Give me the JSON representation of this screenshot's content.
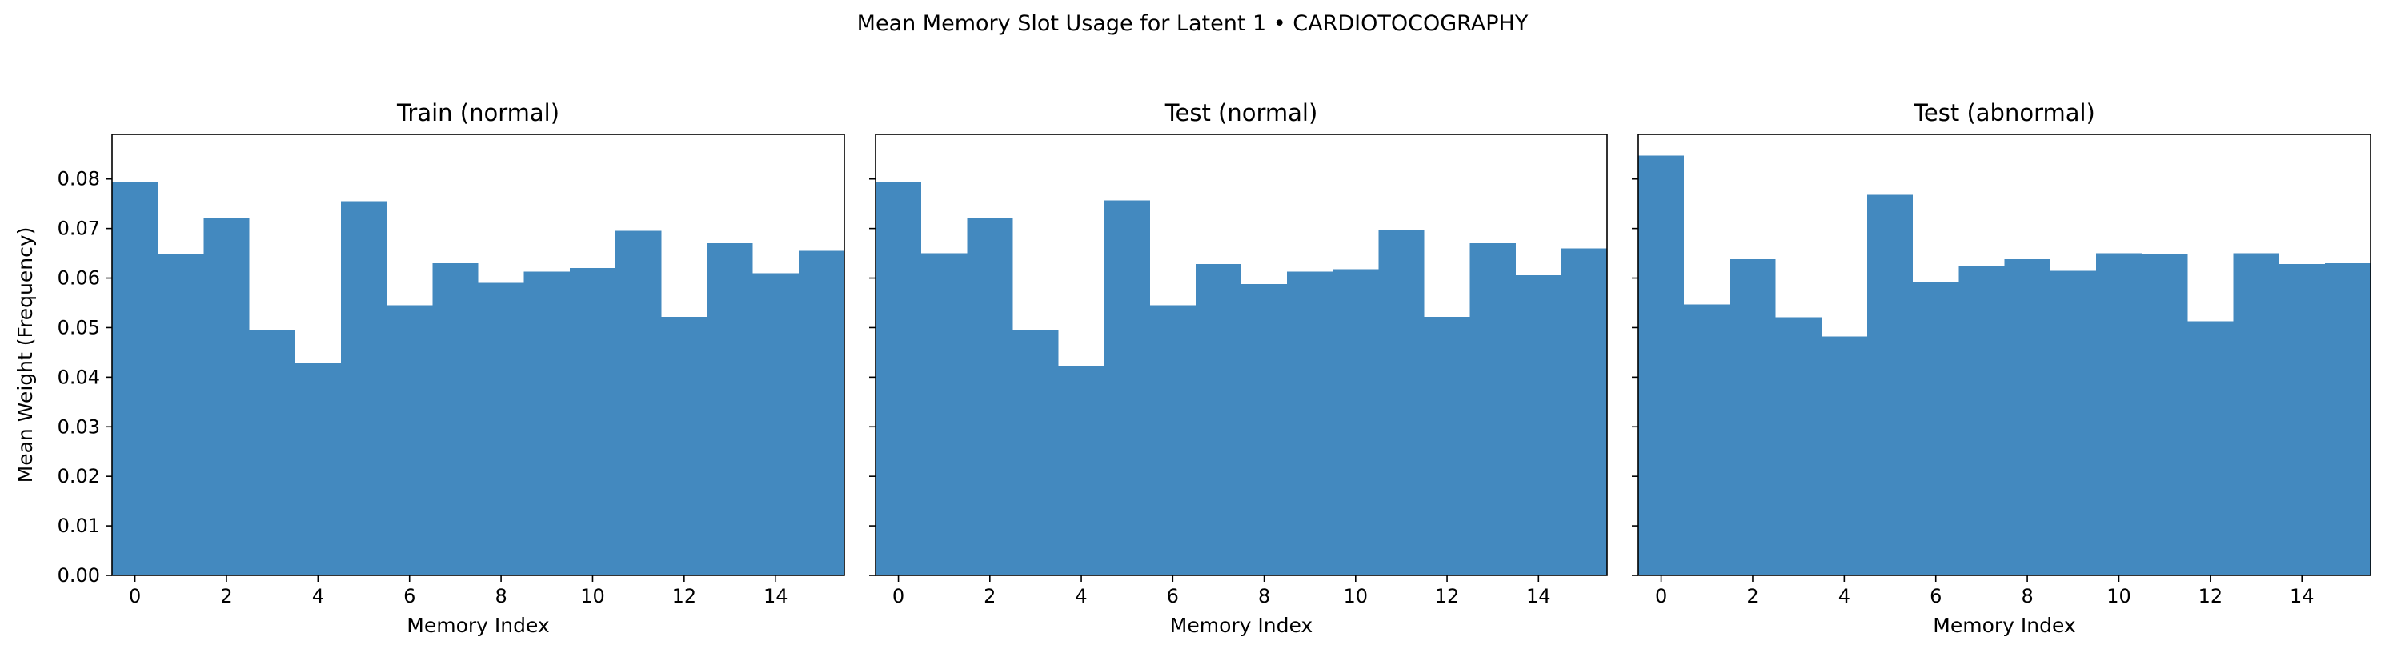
{
  "figure": {
    "suptitle": "Mean Memory Slot Usage for Latent 1 • CARDIOTOCOGRAPHY",
    "bar_color": "#4389BF"
  },
  "chart_data": [
    {
      "type": "bar",
      "title": "Train (normal)",
      "xlabel": "Memory Index",
      "ylabel": "Mean Weight (Frequency)",
      "x": [
        0,
        1,
        2,
        3,
        4,
        5,
        6,
        7,
        8,
        9,
        10,
        11,
        12,
        13,
        14,
        15
      ],
      "values": [
        0.0795,
        0.0648,
        0.072,
        0.0495,
        0.0428,
        0.0755,
        0.0545,
        0.063,
        0.059,
        0.0613,
        0.062,
        0.0695,
        0.0522,
        0.067,
        0.061,
        0.0655
      ],
      "xlim": [
        -0.5,
        15.5
      ],
      "ylim": [
        0,
        0.089
      ],
      "xticks": [
        0,
        2,
        4,
        6,
        8,
        10,
        12,
        14
      ],
      "yticks": [
        0.0,
        0.01,
        0.02,
        0.03,
        0.04,
        0.05,
        0.06,
        0.07,
        0.08
      ],
      "ytick_labels_shown": true,
      "grid": false,
      "legend": "none"
    },
    {
      "type": "bar",
      "title": "Test (normal)",
      "xlabel": "Memory Index",
      "ylabel": "",
      "x": [
        0,
        1,
        2,
        3,
        4,
        5,
        6,
        7,
        8,
        9,
        10,
        11,
        12,
        13,
        14,
        15
      ],
      "values": [
        0.0795,
        0.065,
        0.0722,
        0.0495,
        0.0423,
        0.0757,
        0.0545,
        0.0628,
        0.0588,
        0.0613,
        0.0618,
        0.0697,
        0.0522,
        0.067,
        0.0606,
        0.066
      ],
      "xlim": [
        -0.5,
        15.5
      ],
      "ylim": [
        0,
        0.089
      ],
      "xticks": [
        0,
        2,
        4,
        6,
        8,
        10,
        12,
        14
      ],
      "yticks": [
        0.0,
        0.01,
        0.02,
        0.03,
        0.04,
        0.05,
        0.06,
        0.07,
        0.08
      ],
      "ytick_labels_shown": false,
      "grid": false,
      "legend": "none"
    },
    {
      "type": "bar",
      "title": "Test (abnormal)",
      "xlabel": "Memory Index",
      "ylabel": "",
      "x": [
        0,
        1,
        2,
        3,
        4,
        5,
        6,
        7,
        8,
        9,
        10,
        11,
        12,
        13,
        14,
        15
      ],
      "values": [
        0.0847,
        0.0547,
        0.0638,
        0.0521,
        0.0482,
        0.0768,
        0.0593,
        0.0625,
        0.0638,
        0.0615,
        0.065,
        0.0648,
        0.0513,
        0.065,
        0.0628,
        0.063
      ],
      "xlim": [
        -0.5,
        15.5
      ],
      "ylim": [
        0,
        0.089
      ],
      "xticks": [
        0,
        2,
        4,
        6,
        8,
        10,
        12,
        14
      ],
      "yticks": [
        0.0,
        0.01,
        0.02,
        0.03,
        0.04,
        0.05,
        0.06,
        0.07,
        0.08
      ],
      "ytick_labels_shown": false,
      "grid": false,
      "legend": "none"
    }
  ]
}
